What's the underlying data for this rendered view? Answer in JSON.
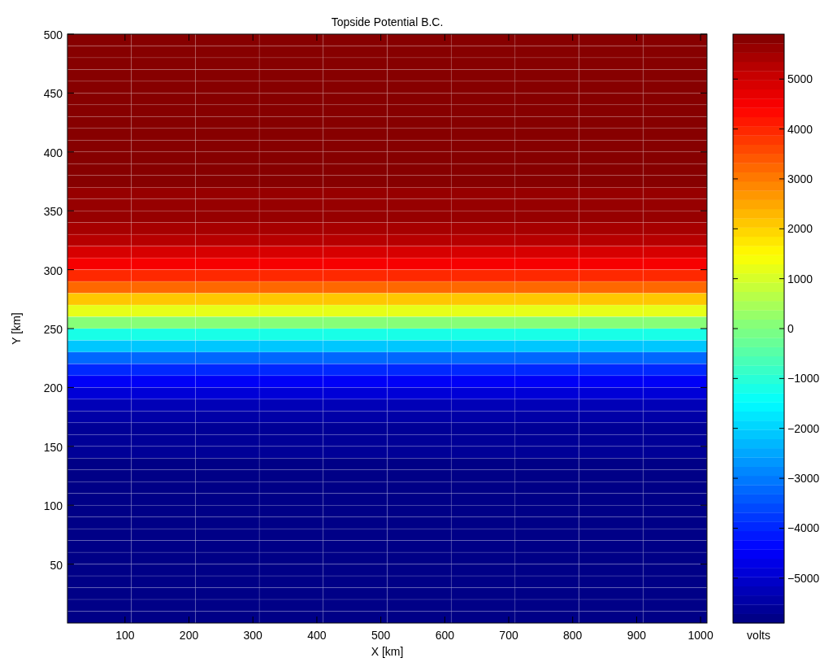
{
  "chart_data": {
    "type": "heatmap",
    "title": "Topside Potential B.C.",
    "xlabel": "X [km]",
    "ylabel": "Y [km]",
    "clabel": "volts",
    "xlim": [
      10,
      1010
    ],
    "ylim": [
      0,
      500
    ],
    "xticks": [
      100,
      200,
      300,
      400,
      500,
      600,
      700,
      800,
      900,
      1000
    ],
    "yticks": [
      50,
      100,
      150,
      200,
      250,
      300,
      350,
      400,
      450,
      500
    ],
    "clim": [
      -5900,
      5900
    ],
    "cticks": [
      -5000,
      -4000,
      -3000,
      -2000,
      -1000,
      0,
      1000,
      2000,
      3000,
      4000,
      5000
    ],
    "cells": [
      [
        5900,
        5900,
        5900,
        5900,
        5900,
        5900,
        5900,
        5900,
        5900,
        5900
      ],
      [
        5900,
        5900,
        5900,
        5900,
        5900,
        5900,
        5900,
        5900,
        5900,
        5900
      ],
      [
        5900,
        5900,
        5900,
        5900,
        5900,
        5900,
        5900,
        5900,
        5900,
        5900
      ],
      [
        5900,
        5900,
        5900,
        5900,
        5900,
        5900,
        5900,
        5900,
        5900,
        5900
      ],
      [
        5900,
        5900,
        5900,
        5900,
        5900,
        5900,
        5900,
        5900,
        5900,
        5900
      ],
      [
        5900,
        5900,
        5900,
        5900,
        5900,
        5900,
        5900,
        5900,
        5900,
        5900
      ],
      [
        5900,
        5900,
        5900,
        5900,
        5900,
        5900,
        5900,
        5900,
        5900,
        5900
      ],
      [
        5900,
        5900,
        5900,
        5900,
        5900,
        5900,
        5900,
        5900,
        5900,
        5900
      ],
      [
        5800,
        5800,
        5800,
        5800,
        5800,
        5800,
        5800,
        5800,
        5800,
        5800
      ],
      [
        5800,
        5800,
        5800,
        5800,
        5800,
        5800,
        5800,
        5800,
        5800,
        5800
      ],
      [
        5800,
        5800,
        5800,
        5800,
        5800,
        5800,
        5800,
        5800,
        5800,
        5800
      ],
      [
        5800,
        5800,
        5800,
        5800,
        5800,
        5800,
        5800,
        5800,
        5800,
        5800
      ],
      [
        5800,
        5800,
        5800,
        5800,
        5800,
        5800,
        5800,
        5800,
        5800,
        5800
      ],
      [
        5700,
        5700,
        5700,
        5700,
        5700,
        5700,
        5700,
        5700,
        5700,
        5700
      ],
      [
        5700,
        5700,
        5700,
        5700,
        5700,
        5700,
        5700,
        5700,
        5700,
        5700
      ],
      [
        5600,
        5600,
        5600,
        5600,
        5600,
        5600,
        5600,
        5600,
        5600,
        5600
      ],
      [
        5400,
        5400,
        5400,
        5400,
        5400,
        5400,
        5400,
        5400,
        5400,
        5400
      ],
      [
        5200,
        5200,
        5200,
        5200,
        5200,
        5200,
        5200,
        5200,
        5200,
        5200
      ],
      [
        4900,
        4900,
        4900,
        4900,
        4900,
        4900,
        4900,
        4900,
        4900,
        4900
      ],
      [
        4500,
        4500,
        4500,
        4500,
        4500,
        4500,
        4500,
        4500,
        4500,
        4500
      ],
      [
        3900,
        3900,
        3900,
        3900,
        3900,
        3900,
        3900,
        3900,
        3900,
        3900
      ],
      [
        3200,
        3200,
        3200,
        3200,
        3200,
        3200,
        3200,
        3200,
        3200,
        3200
      ],
      [
        2200,
        2200,
        2200,
        2200,
        2200,
        2200,
        2200,
        2200,
        2200,
        2200
      ],
      [
        1200,
        1200,
        1200,
        1200,
        1200,
        1200,
        1200,
        1200,
        1200,
        1200
      ],
      [
        0,
        0,
        0,
        0,
        0,
        0,
        0,
        0,
        0,
        0
      ],
      [
        -1200,
        -1200,
        -1200,
        -1200,
        -1200,
        -1200,
        -1200,
        -1200,
        -1200,
        -1200
      ],
      [
        -2200,
        -2200,
        -2200,
        -2200,
        -2200,
        -2200,
        -2200,
        -2200,
        -2200,
        -2200
      ],
      [
        -3200,
        -3200,
        -3200,
        -3200,
        -3200,
        -3200,
        -3200,
        -3200,
        -3200,
        -3200
      ],
      [
        -3900,
        -3900,
        -3900,
        -3900,
        -3900,
        -3900,
        -3900,
        -3900,
        -3900,
        -3900
      ],
      [
        -4500,
        -4500,
        -4500,
        -4500,
        -4500,
        -4500,
        -4500,
        -4500,
        -4500,
        -4500
      ],
      [
        -4900,
        -4900,
        -4900,
        -4900,
        -4900,
        -4900,
        -4900,
        -4900,
        -4900,
        -4900
      ],
      [
        -5200,
        -5200,
        -5200,
        -5200,
        -5200,
        -5200,
        -5200,
        -5200,
        -5200,
        -5200
      ],
      [
        -5400,
        -5400,
        -5400,
        -5400,
        -5400,
        -5400,
        -5400,
        -5400,
        -5400,
        -5400
      ],
      [
        -5600,
        -5600,
        -5600,
        -5600,
        -5600,
        -5600,
        -5600,
        -5600,
        -5600,
        -5600
      ],
      [
        -5700,
        -5700,
        -5700,
        -5700,
        -5700,
        -5700,
        -5700,
        -5700,
        -5700,
        -5700
      ],
      [
        -5700,
        -5700,
        -5700,
        -5700,
        -5700,
        -5700,
        -5700,
        -5700,
        -5700,
        -5700
      ],
      [
        -5800,
        -5800,
        -5800,
        -5800,
        -5800,
        -5800,
        -5800,
        -5800,
        -5800,
        -5800
      ],
      [
        -5800,
        -5800,
        -5800,
        -5800,
        -5800,
        -5800,
        -5800,
        -5800,
        -5800,
        -5800
      ],
      [
        -5800,
        -5800,
        -5800,
        -5800,
        -5800,
        -5800,
        -5800,
        -5800,
        -5800,
        -5800
      ],
      [
        -5800,
        -5800,
        -5800,
        -5800,
        -5800,
        -5800,
        -5800,
        -5800,
        -5800,
        -5800
      ],
      [
        -5800,
        -5800,
        -5800,
        -5800,
        -5800,
        -5800,
        -5800,
        -5800,
        -5800,
        -5800
      ],
      [
        -5900,
        -5900,
        -5900,
        -5900,
        -5900,
        -5900,
        -5900,
        -5900,
        -5900,
        -5900
      ],
      [
        -5900,
        -5900,
        -5900,
        -5900,
        -5900,
        -5900,
        -5900,
        -5900,
        -5900,
        -5900
      ],
      [
        -5900,
        -5900,
        -5900,
        -5900,
        -5900,
        -5900,
        -5900,
        -5900,
        -5900,
        -5900
      ],
      [
        -5900,
        -5900,
        -5900,
        -5900,
        -5900,
        -5900,
        -5900,
        -5900,
        -5900,
        -5900
      ],
      [
        -5900,
        -5900,
        -5900,
        -5900,
        -5900,
        -5900,
        -5900,
        -5900,
        -5900,
        -5900
      ],
      [
        -5900,
        -5900,
        -5900,
        -5900,
        -5900,
        -5900,
        -5900,
        -5900,
        -5900,
        -5900
      ],
      [
        -5900,
        -5900,
        -5900,
        -5900,
        -5900,
        -5900,
        -5900,
        -5900,
        -5900,
        -5900
      ],
      [
        -5900,
        -5900,
        -5900,
        -5900,
        -5900,
        -5900,
        -5900,
        -5900,
        -5900,
        -5900
      ],
      [
        -5900,
        -5900,
        -5900,
        -5900,
        -5900,
        -5900,
        -5900,
        -5900,
        -5900,
        -5900
      ]
    ]
  }
}
